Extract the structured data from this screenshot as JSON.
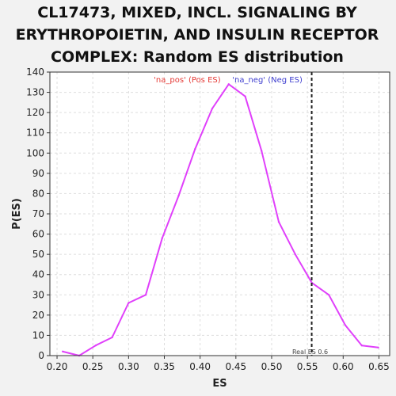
{
  "chart_data": {
    "type": "line",
    "title_lines": [
      "CL17473, MIXED, INCL. SIGNALING BY",
      "ERYTHROPOIETIN, AND INSULIN RECEPTOR",
      "COMPLEX: Random ES distribution"
    ],
    "xlabel": "ES",
    "ylabel": "P(ES)",
    "xlim": [
      0.19,
      0.665
    ],
    "ylim": [
      0,
      140
    ],
    "x_ticks": [
      "0.20",
      "0.25",
      "0.30",
      "0.35",
      "0.40",
      "0.45",
      "0.50",
      "0.55",
      "0.60",
      "0.65"
    ],
    "x_tick_values": [
      0.2,
      0.25,
      0.3,
      0.35,
      0.4,
      0.45,
      0.5,
      0.55,
      0.6,
      0.65
    ],
    "y_ticks": [
      0,
      10,
      20,
      30,
      40,
      50,
      60,
      70,
      80,
      90,
      100,
      110,
      120,
      130,
      140
    ],
    "grid": true,
    "series": [
      {
        "color": "#e040fb",
        "x": [
          0.208,
          0.231,
          0.254,
          0.277,
          0.3,
          0.324,
          0.347,
          0.37,
          0.393,
          0.417,
          0.44,
          0.463,
          0.486,
          0.51,
          0.533,
          0.556,
          0.58,
          0.603,
          0.626,
          0.649
        ],
        "y": [
          2,
          0,
          5,
          9,
          26,
          30,
          58,
          79,
          102,
          122,
          134,
          128,
          101,
          66,
          50,
          36,
          30,
          15,
          5,
          4
        ]
      }
    ],
    "real_es": {
      "value": 0.556,
      "label": "Real ES 0.6",
      "color": "#222222"
    },
    "legend": [
      {
        "label": "'na_pos' (Pos ES)",
        "color": "#e53935"
      },
      {
        "label": "'na_neg' (Neg ES)",
        "color": "#3f3fcf"
      }
    ],
    "colors": {
      "background": "#f2f2f2",
      "plot_background": "#ffffff",
      "grid": "#dddddd"
    }
  }
}
